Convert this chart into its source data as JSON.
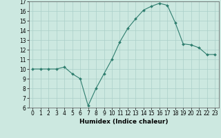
{
  "x": [
    0,
    1,
    2,
    3,
    4,
    5,
    6,
    7,
    8,
    9,
    10,
    11,
    12,
    13,
    14,
    15,
    16,
    17,
    18,
    19,
    20,
    21,
    22,
    23
  ],
  "y": [
    10.0,
    10.0,
    10.0,
    10.0,
    10.2,
    9.5,
    9.0,
    6.2,
    8.0,
    9.5,
    11.0,
    12.8,
    14.2,
    15.2,
    16.1,
    16.5,
    16.8,
    16.6,
    14.8,
    12.6,
    12.5,
    12.2,
    11.5,
    11.5
  ],
  "line_color": "#2e7d6e",
  "marker": "D",
  "marker_size": 2.0,
  "bg_color": "#cce8e0",
  "grid_color": "#aacfc8",
  "xlabel": "Humidex (Indice chaleur)",
  "ylim": [
    6,
    17
  ],
  "xlim": [
    -0.5,
    23.5
  ],
  "yticks": [
    6,
    7,
    8,
    9,
    10,
    11,
    12,
    13,
    14,
    15,
    16,
    17
  ],
  "xticks": [
    0,
    1,
    2,
    3,
    4,
    5,
    6,
    7,
    8,
    9,
    10,
    11,
    12,
    13,
    14,
    15,
    16,
    17,
    18,
    19,
    20,
    21,
    22,
    23
  ],
  "label_fontsize": 6.5,
  "tick_fontsize": 5.5
}
